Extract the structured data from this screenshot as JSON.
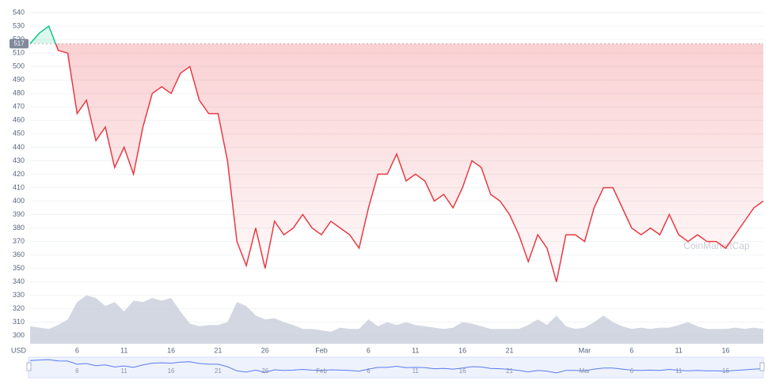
{
  "chart_data": {
    "type": "line",
    "y_label": "USD",
    "watermark": "CoinMarketCap",
    "baseline": 517,
    "categories": [
      null,
      null,
      null,
      null,
      null,
      "6",
      null,
      null,
      null,
      null,
      "11",
      null,
      null,
      null,
      null,
      "16",
      null,
      null,
      null,
      null,
      "21",
      null,
      null,
      null,
      null,
      "26",
      null,
      null,
      null,
      null,
      null,
      "Feb",
      null,
      null,
      null,
      null,
      "6",
      null,
      null,
      null,
      null,
      "11",
      null,
      null,
      null,
      null,
      "16",
      null,
      null,
      null,
      null,
      "21",
      null,
      null,
      null,
      null,
      null,
      null,
      null,
      "Mar",
      null,
      null,
      null,
      null,
      "6",
      null,
      null,
      null,
      null,
      "11",
      null,
      null,
      null,
      null,
      "16",
      null,
      null,
      null,
      null
    ],
    "series": [
      {
        "name": "Price",
        "color": "#ea3943",
        "up_color": "#16c784",
        "values": [
          517,
          525,
          530,
          512,
          510,
          465,
          475,
          445,
          455,
          425,
          440,
          420,
          455,
          480,
          485,
          480,
          495,
          500,
          475,
          465,
          465,
          430,
          370,
          352,
          380,
          350,
          385,
          375,
          380,
          390,
          380,
          375,
          385,
          380,
          375,
          365,
          395,
          420,
          420,
          435,
          415,
          420,
          415,
          400,
          405,
          395,
          410,
          430,
          425,
          405,
          400,
          390,
          375,
          355,
          375,
          365,
          340,
          375,
          375,
          370,
          395,
          410,
          410,
          395,
          380,
          375,
          380,
          375,
          390,
          375,
          370,
          375,
          370,
          370,
          365,
          375,
          385,
          395,
          400
        ]
      },
      {
        "name": "Volume",
        "color": "#c7cdd9",
        "values": [
          307,
          306,
          305,
          308,
          312,
          325,
          330,
          328,
          322,
          325,
          318,
          326,
          325,
          328,
          326,
          328,
          318,
          309,
          307,
          308,
          308,
          310,
          325,
          322,
          315,
          312,
          313,
          310,
          308,
          305,
          305,
          304,
          303,
          306,
          305,
          305,
          312,
          307,
          310,
          308,
          310,
          308,
          307,
          306,
          305,
          306,
          310,
          309,
          307,
          305,
          305,
          305,
          305,
          308,
          312,
          308,
          315,
          307,
          305,
          306,
          310,
          315,
          310,
          307,
          305,
          306,
          305,
          306,
          306,
          308,
          310,
          307,
          305,
          305,
          305,
          306,
          305,
          306,
          305
        ]
      }
    ],
    "ylim": [
      294,
      543
    ],
    "yticks": [
      300,
      310,
      320,
      330,
      340,
      350,
      360,
      370,
      380,
      390,
      400,
      410,
      420,
      430,
      440,
      450,
      460,
      470,
      480,
      490,
      500,
      510,
      520,
      530,
      540
    ],
    "grid": true
  }
}
